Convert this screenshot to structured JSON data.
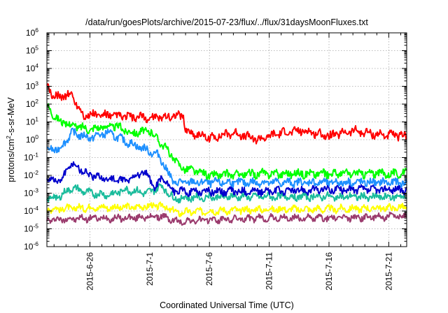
{
  "chart_data": {
    "type": "line",
    "title": "/data/run/goesPlots/archive/2015-07-23/flux/../flux/31daysMoonFluxes.txt",
    "xlabel": "Coordinated Universal Time (UTC)",
    "ylabel": {
      "base": "protons/cm",
      "sup": "2",
      "rest": "-s-sr-MeV"
    },
    "yscale": "log",
    "ylim_exp": [
      -6,
      6
    ],
    "ytick_exps": [
      -6,
      -5,
      -4,
      -3,
      -2,
      -1,
      0,
      1,
      2,
      3,
      4,
      5,
      6
    ],
    "ytick_base": "10",
    "xlim_days": [
      -3.6,
      26.5
    ],
    "xticks": [
      {
        "label": "2015-6-26",
        "day": 0
      },
      {
        "label": "2015-7-1",
        "day": 5
      },
      {
        "label": "2015-7-6",
        "day": 10
      },
      {
        "label": "2015-7-11",
        "day": 15
      },
      {
        "label": "2015-7-16",
        "day": 20
      },
      {
        "label": "2015-7-21",
        "day": 25
      }
    ],
    "grid": true,
    "series": [
      {
        "color": "#9b3c6e",
        "points": [
          [
            -3.6,
            -4.5
          ],
          [
            0,
            -4.4
          ],
          [
            3,
            -4.4
          ],
          [
            6,
            -4.3
          ],
          [
            7.3,
            -4.6
          ],
          [
            10,
            -4.5
          ],
          [
            15,
            -4.4
          ],
          [
            20,
            -4.4
          ],
          [
            26.5,
            -4.3
          ]
        ]
      },
      {
        "color": "#ffff00",
        "points": [
          [
            -3.6,
            -3.9
          ],
          [
            0,
            -3.8
          ],
          [
            3,
            -3.8
          ],
          [
            6,
            -3.7
          ],
          [
            7.3,
            -4.1
          ],
          [
            10,
            -4.0
          ],
          [
            15,
            -3.9
          ],
          [
            20,
            -3.9
          ],
          [
            26.5,
            -3.8
          ]
        ]
      },
      {
        "color": "#1abc9c",
        "points": [
          [
            -3.6,
            -3.3
          ],
          [
            -2.6,
            -3.2
          ],
          [
            -1.5,
            -2.7
          ],
          [
            0,
            -3.0
          ],
          [
            1.5,
            -3.1
          ],
          [
            3,
            -2.8
          ],
          [
            4.8,
            -3.0
          ],
          [
            6,
            -2.6
          ],
          [
            7,
            -3.3
          ],
          [
            10,
            -3.2
          ],
          [
            15,
            -3.2
          ],
          [
            20,
            -3.2
          ],
          [
            26.5,
            -3.2
          ]
        ]
      },
      {
        "color": "#0000cd",
        "points": [
          [
            -3.6,
            -2.2
          ],
          [
            -2.4,
            -2.3
          ],
          [
            -1.6,
            -1.3
          ],
          [
            0,
            -2.0
          ],
          [
            1.5,
            -2.2
          ],
          [
            3,
            -2.3
          ],
          [
            4.5,
            -1.8
          ],
          [
            5.5,
            -2.7
          ],
          [
            6,
            -2.1
          ],
          [
            7,
            -2.9
          ],
          [
            10,
            -2.9
          ],
          [
            15,
            -2.9
          ],
          [
            20,
            -2.8
          ],
          [
            26.5,
            -2.8
          ]
        ]
      },
      {
        "color": "#1e90ff",
        "points": [
          [
            -3.6,
            -0.6
          ],
          [
            -2.5,
            -0.5
          ],
          [
            -1.5,
            0.4
          ],
          [
            0,
            0.1
          ],
          [
            1.5,
            0.4
          ],
          [
            3,
            -0.1
          ],
          [
            4.5,
            -0.5
          ],
          [
            5.8,
            -0.9
          ],
          [
            6.5,
            -1.8
          ],
          [
            7,
            -2.4
          ],
          [
            10,
            -2.4
          ],
          [
            15,
            -2.4
          ],
          [
            20,
            -2.4
          ],
          [
            26.5,
            -2.4
          ]
        ]
      },
      {
        "color": "#00ff00",
        "points": [
          [
            -3.6,
            1.9
          ],
          [
            -2.5,
            1.0
          ],
          [
            -1.5,
            0.8
          ],
          [
            0,
            0.6
          ],
          [
            2,
            0.8
          ],
          [
            3.5,
            0.4
          ],
          [
            5,
            0.5
          ],
          [
            6,
            -0.2
          ],
          [
            7.5,
            -1.5
          ],
          [
            10,
            -2.0
          ],
          [
            15,
            -1.9
          ],
          [
            20,
            -1.9
          ],
          [
            26.5,
            -1.9
          ]
        ]
      },
      {
        "color": "#ff0000",
        "points": [
          [
            -3.6,
            3.0
          ],
          [
            -3,
            2.4
          ],
          [
            -2,
            2.5
          ],
          [
            -1.5,
            2.5
          ],
          [
            -0.5,
            1.3
          ],
          [
            0,
            1.4
          ],
          [
            3,
            1.3
          ],
          [
            5,
            1.2
          ],
          [
            7.8,
            1.4
          ],
          [
            8,
            0.5
          ],
          [
            10,
            0.1
          ],
          [
            12,
            0.4
          ],
          [
            14,
            0.0
          ],
          [
            16,
            0.4
          ],
          [
            18,
            0.5
          ],
          [
            20,
            0.2
          ],
          [
            22,
            0.5
          ],
          [
            24,
            0.3
          ],
          [
            26.5,
            0.2
          ]
        ]
      }
    ]
  }
}
